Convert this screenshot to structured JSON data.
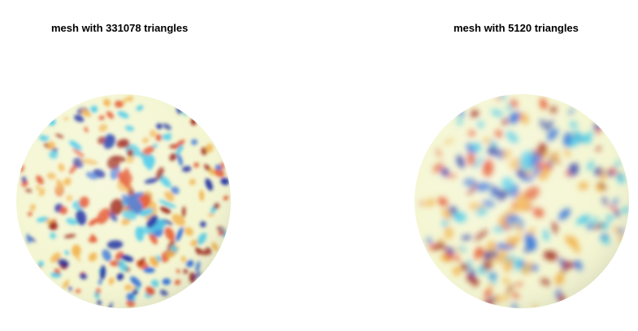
{
  "figure": {
    "panels": [
      {
        "title": "mesh with 331078 triangles",
        "seed": 7,
        "blobs": 230,
        "blur": 2.2
      },
      {
        "title": "mesh with 5120 triangles",
        "seed": 19,
        "blobs": 210,
        "blur": 3.6
      }
    ],
    "colors": {
      "background": "#ffffff",
      "colormap": [
        "#1c2fa0",
        "#2f6fd6",
        "#42c8e8",
        "#f4f6d2",
        "#f2b24a",
        "#e2481c",
        "#9a1d0c"
      ]
    }
  }
}
